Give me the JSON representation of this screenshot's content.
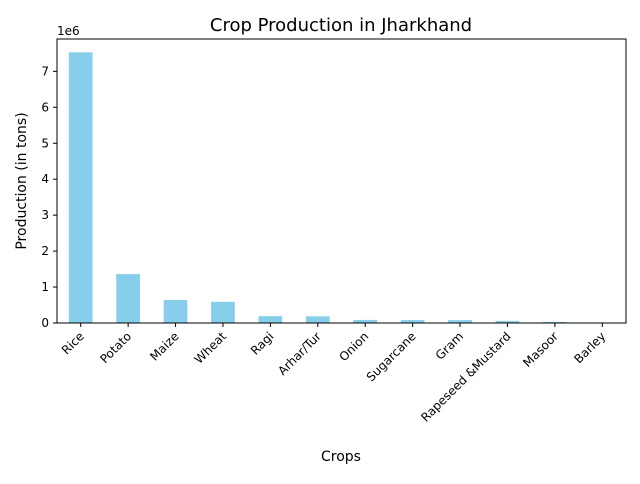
{
  "chart_data": {
    "type": "bar",
    "title": "Crop Production in Jharkhand",
    "xlabel": "Crops",
    "ylabel": "Production (in tons)",
    "y_offset_label": "1e6",
    "categories": [
      "Rice",
      "Potato",
      "Maize",
      "Wheat",
      "Ragi",
      "Arhar/Tur",
      "Onion",
      "Sugarcane",
      "Gram",
      "Rapeseed &Mustard",
      "Masoor",
      "Barley"
    ],
    "values": [
      7530000,
      1360000,
      640000,
      590000,
      190000,
      185000,
      85000,
      82000,
      80000,
      60000,
      30000,
      8000
    ],
    "ylim": [
      0,
      7900000
    ],
    "yticks": [
      0,
      1000000,
      2000000,
      3000000,
      4000000,
      5000000,
      6000000,
      7000000
    ],
    "ytick_labels": [
      "0",
      "1",
      "2",
      "3",
      "4",
      "5",
      "6",
      "7"
    ],
    "bar_color": "#87ceeb",
    "grid": false,
    "legend": "none"
  }
}
